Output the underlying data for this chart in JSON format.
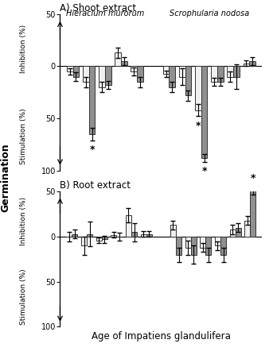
{
  "panel_A_title": "A) Shoot extract",
  "panel_B_title": "B) Root extract",
  "xlabel": "Age of Impatiens glandulifera",
  "species_left": "Hieracium murorum",
  "species_right": "Scrophularia nodosa",
  "A_HM_pos": [
    1,
    2,
    3,
    4,
    5
  ],
  "A_HM_white_val": [
    -5,
    -15,
    -20,
    13,
    -5
  ],
  "A_HM_white_err": [
    3,
    5,
    5,
    5,
    4
  ],
  "A_HM_gray_val": [
    -10,
    -65,
    -18,
    5,
    -15
  ],
  "A_HM_gray_err": [
    4,
    6,
    4,
    4,
    5
  ],
  "A_HM_star_white": [
    false,
    false,
    false,
    false,
    false
  ],
  "A_HM_star_gray": [
    false,
    true,
    false,
    false,
    false
  ],
  "A_SN_pos": [
    7,
    8,
    9,
    10,
    11,
    12
  ],
  "A_SN_white_val": [
    -7,
    -10,
    -42,
    -15,
    -10,
    3
  ],
  "A_SN_white_err": [
    3,
    8,
    6,
    4,
    5,
    3
  ],
  "A_SN_gray_val": [
    -20,
    -28,
    -88,
    -15,
    -10,
    5
  ],
  "A_SN_gray_err": [
    5,
    5,
    4,
    4,
    12,
    4
  ],
  "A_SN_star_white": [
    false,
    false,
    true,
    false,
    false,
    false
  ],
  "A_SN_star_gray": [
    false,
    false,
    true,
    false,
    false,
    false
  ],
  "B_HM_pos": [
    1,
    2,
    3,
    4,
    5,
    6
  ],
  "B_HM_white_val": [
    0,
    -10,
    -4,
    2,
    24,
    3
  ],
  "B_HM_white_err": [
    5,
    10,
    3,
    3,
    8,
    3
  ],
  "B_HM_gray_val": [
    3,
    3,
    -3,
    0,
    5,
    3
  ],
  "B_HM_gray_err": [
    5,
    14,
    4,
    4,
    10,
    3
  ],
  "B_HM_star_white": [
    false,
    false,
    false,
    false,
    false,
    false
  ],
  "B_HM_star_gray": [
    false,
    false,
    false,
    false,
    false,
    false
  ],
  "B_SN_pos": [
    8,
    9,
    10,
    11,
    12,
    13
  ],
  "B_SN_white_val": [
    13,
    -12,
    -12,
    -10,
    8,
    18
  ],
  "B_SN_white_err": [
    5,
    8,
    5,
    5,
    5,
    5
  ],
  "B_SN_gray_val": [
    -20,
    -20,
    -20,
    -20,
    10,
    52
  ],
  "B_SN_gray_err": [
    8,
    10,
    8,
    8,
    5,
    5
  ],
  "B_SN_star_white": [
    false,
    false,
    false,
    false,
    false,
    false
  ],
  "B_SN_star_gray": [
    false,
    false,
    false,
    false,
    false,
    true
  ],
  "bar_width": 0.38,
  "color_white": "#f0f0f0",
  "color_gray": "#909090",
  "color_edge": "#333333"
}
